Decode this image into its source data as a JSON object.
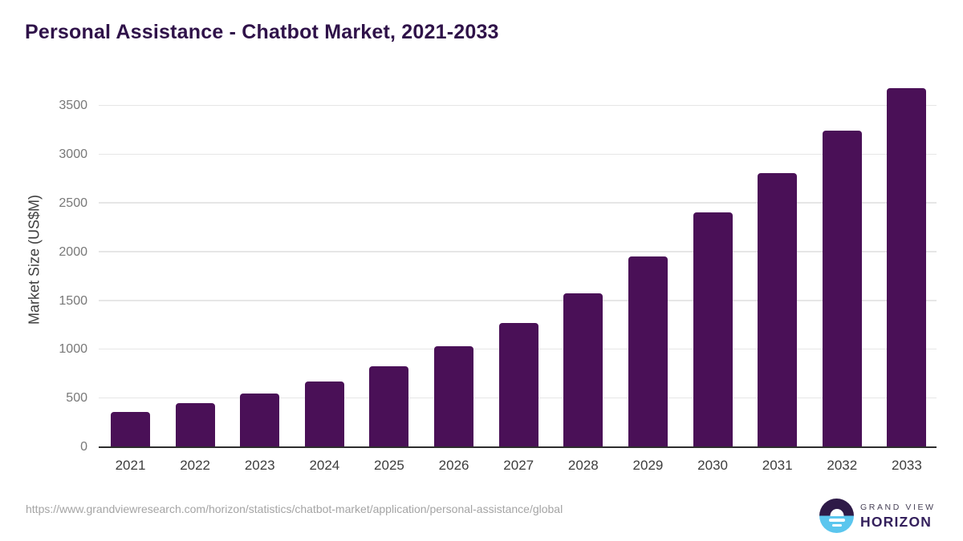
{
  "header": {
    "title": "Personal Assistance - Chatbot Market, 2021-2033"
  },
  "chart_data": {
    "type": "bar",
    "title": "Personal Assistance - Chatbot Market, 2021-2033",
    "categories": [
      "2021",
      "2022",
      "2023",
      "2024",
      "2025",
      "2026",
      "2027",
      "2028",
      "2029",
      "2030",
      "2031",
      "2032",
      "2033"
    ],
    "values": [
      355,
      442,
      543,
      670,
      826,
      1028,
      1266,
      1570,
      1949,
      2403,
      2806,
      3240,
      3675
    ],
    "xlabel": "",
    "ylabel": "Market Size (US$M)",
    "yticks": [
      0,
      500,
      1000,
      1500,
      2000,
      2500,
      3000,
      3500
    ],
    "ylim": [
      0,
      3700
    ],
    "grid": "horizontal",
    "legend": "none",
    "bar_color": "#4a1057"
  },
  "footer": {
    "source_url": "https://www.grandviewresearch.com/horizon/statistics/chatbot-market/application/personal-assistance/global",
    "logo": {
      "line1": "GRAND VIEW",
      "line2": "HORIZON"
    }
  },
  "colors": {
    "title_text": "#2f1249",
    "bar": "#4a1057",
    "gridline": "#e6e6e6",
    "axis_line": "#2d2d2d",
    "ytick_text": "#787878",
    "xtick_text": "#3d3d3d",
    "url_text": "#a4a4a4",
    "logo_dark": "#2e1a47",
    "logo_blue": "#5bc6ee"
  }
}
